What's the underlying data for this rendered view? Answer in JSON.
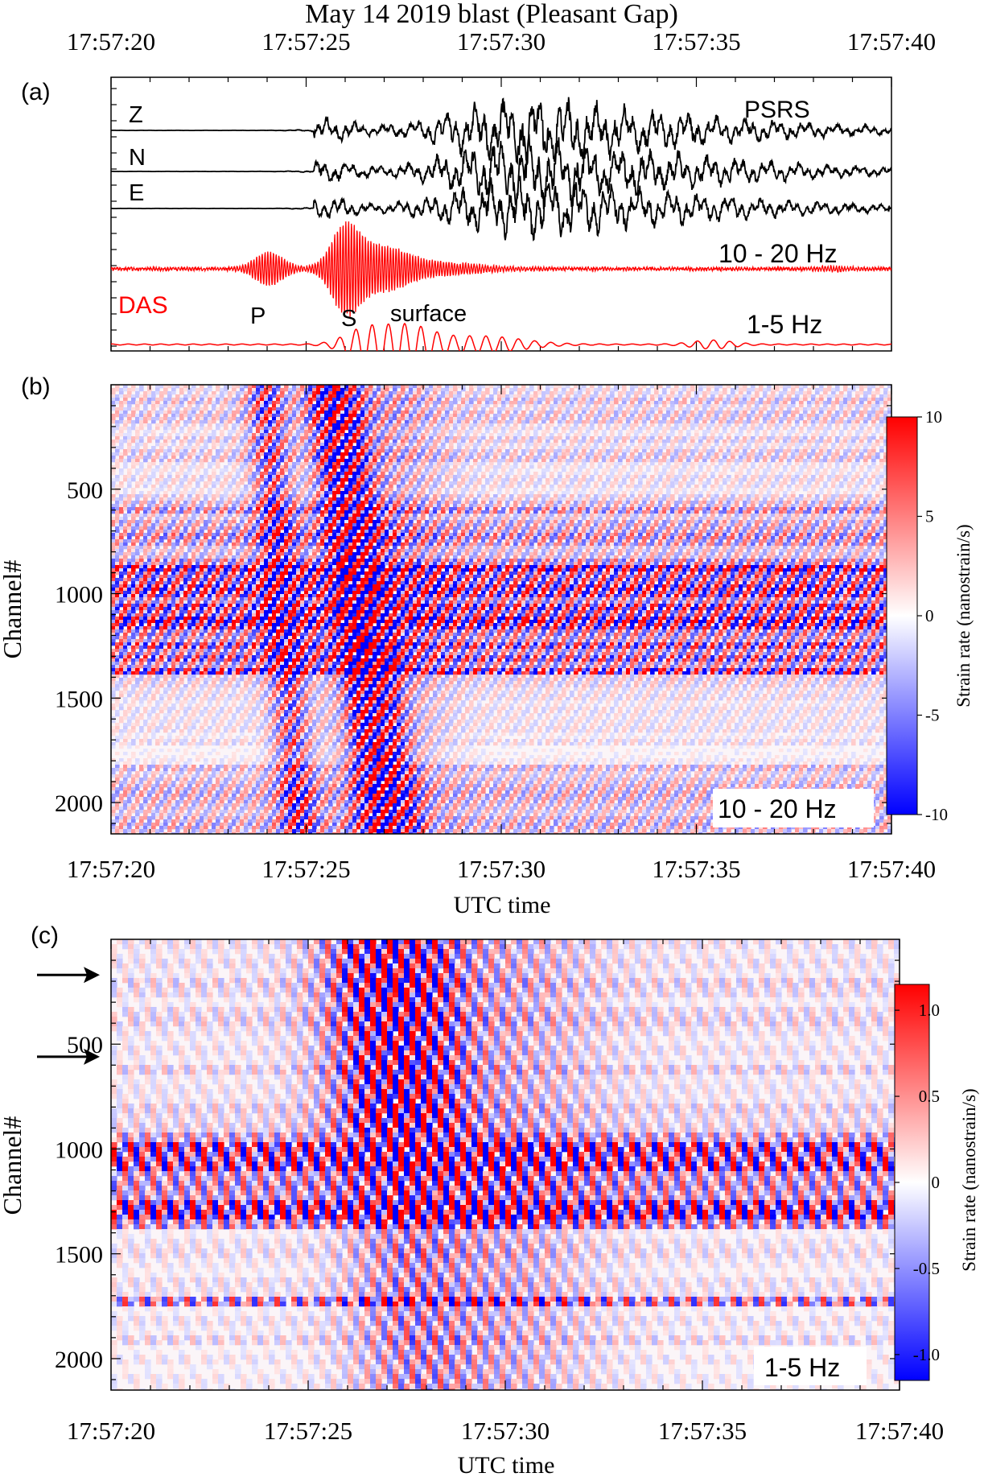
{
  "title": "May 14 2019 blast (Pleasant Gap)",
  "time_ticks": [
    "17:57:20",
    "17:57:25",
    "17:57:30",
    "17:57:35",
    "17:57:40"
  ],
  "chart_data": [
    {
      "panel": "(a)",
      "type": "line",
      "x_range_s": [
        0,
        20
      ],
      "x_ticks_s": [
        0,
        5,
        10,
        15,
        20
      ],
      "station": "PSRS",
      "series": [
        {
          "name": "Z",
          "color": "#000000"
        },
        {
          "name": "N",
          "color": "#000000"
        },
        {
          "name": "E",
          "color": "#000000"
        },
        {
          "name": "DAS",
          "band": "10 - 20 Hz",
          "color": "#ff0000"
        },
        {
          "name": "",
          "band": "1-5 Hz",
          "color": "#ff0000"
        }
      ],
      "phase_labels": [
        "P",
        "S",
        "surface"
      ],
      "das_label": "DAS",
      "band_labels": [
        "10 - 20 Hz",
        "1-5 Hz"
      ]
    },
    {
      "panel": "(b)",
      "type": "heatmap",
      "x_range_s": [
        0,
        20
      ],
      "ylabel": "Channel#",
      "xlabel": "UTC time",
      "y_ticks": [
        500,
        1000,
        1500,
        2000
      ],
      "y_range": [
        0,
        2150
      ],
      "band": "10 - 20 Hz",
      "colorbar": {
        "label": "Strain rate (nanostrain/s)",
        "range": [
          -10,
          10
        ],
        "ticks": [
          "10",
          "5",
          "0",
          "-5",
          "-10"
        ]
      }
    },
    {
      "panel": "(c)",
      "type": "heatmap",
      "x_range_s": [
        0,
        20
      ],
      "ylabel": "Channel#",
      "xlabel": "UTC time",
      "y_ticks": [
        500,
        1000,
        1500,
        2000
      ],
      "y_range": [
        0,
        2150
      ],
      "band": "1-5 Hz",
      "arrow_channels": [
        170,
        560
      ],
      "colorbar": {
        "label": "Strain rate (nanostrain/s)",
        "range": [
          -1.15,
          1.15
        ],
        "ticks": [
          "1.0",
          "0.5",
          "0",
          "-0.5",
          "-1.0"
        ]
      }
    }
  ]
}
